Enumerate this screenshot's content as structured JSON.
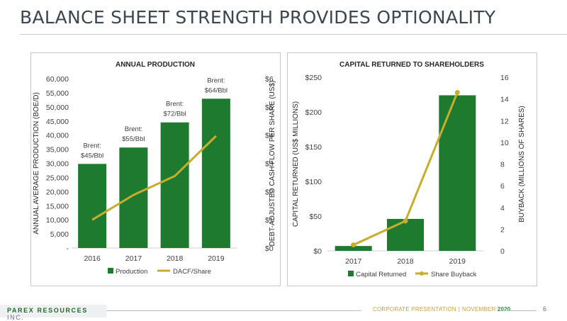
{
  "slide": {
    "title": "BALANCE SHEET STRENGTH PROVIDES OPTIONALITY",
    "footer": {
      "brand_main": "PAREX RESOURCES",
      "brand_suffix": "INC.",
      "presentation": "CORPORATE PRESENTATION",
      "separator": "|",
      "month": "NOVEMBER",
      "year": "2020",
      "page": "6"
    }
  },
  "colors": {
    "bar": "#1e7a2f",
    "line": "#c6ad2d",
    "text": "#3b4650",
    "brand": "#1f6b2a"
  },
  "chart_data": [
    {
      "type": "bar",
      "title": "ANNUAL PRODUCTION",
      "categories": [
        "2016",
        "2017",
        "2018",
        "2019"
      ],
      "ylabel": "ANNUAL AVERAGE PRODUCTION (BOE/D)",
      "y2label": "DEBT-ADJUSTED CASH FLOW PER SHARE (US$)",
      "ylim": [
        0,
        60000
      ],
      "y2lim": [
        0,
        6
      ],
      "yticks": [
        "-",
        "5,000",
        "10,000",
        "15,000",
        "20,000",
        "25,000",
        "30,000",
        "35,000",
        "40,000",
        "45,000",
        "50,000",
        "55,000",
        "60,000"
      ],
      "y2ticks": [
        "$0",
        "$1",
        "$2",
        "$3",
        "$4",
        "$5",
        "$6"
      ],
      "series": [
        {
          "name": "Production",
          "kind": "bar",
          "axis": "left",
          "values": [
            29800,
            35600,
            44500,
            52900
          ]
        },
        {
          "name": "DACF/Share",
          "kind": "line",
          "axis": "right",
          "values": [
            1.0,
            1.88,
            2.55,
            3.97
          ]
        }
      ],
      "annotations": [
        {
          "line1": "Brent:",
          "line2": "$45/Bbl"
        },
        {
          "line1": "Brent:",
          "line2": "$55/Bbl"
        },
        {
          "line1": "Brent:",
          "line2": "$72/Bbl"
        },
        {
          "line1": "Brent:",
          "line2": "$64/Bbl"
        }
      ],
      "legend": "bottom"
    },
    {
      "type": "bar",
      "title": "CAPITAL RETURNED TO SHAREHOLDERS",
      "categories": [
        "2017",
        "2018",
        "2019"
      ],
      "ylabel": "CAPITAL RETURNED  (US$ MILLIONS)",
      "y2label": "BUYBACK (MILLIONS OF SHARES)",
      "ylim": [
        0,
        250
      ],
      "y2lim": [
        0,
        16
      ],
      "yticks": [
        "$0",
        "$50",
        "$100",
        "$150",
        "$200",
        "$250"
      ],
      "y2ticks": [
        "0",
        "2",
        "4",
        "6",
        "8",
        "10",
        "12",
        "14",
        "16"
      ],
      "series": [
        {
          "name": "Capital Returned",
          "kind": "bar",
          "axis": "left",
          "values": [
            7,
            46,
            224
          ]
        },
        {
          "name": "Share Buyback",
          "kind": "line",
          "axis": "right",
          "values": [
            0.55,
            2.75,
            14.6
          ]
        }
      ],
      "legend": "bottom"
    }
  ]
}
